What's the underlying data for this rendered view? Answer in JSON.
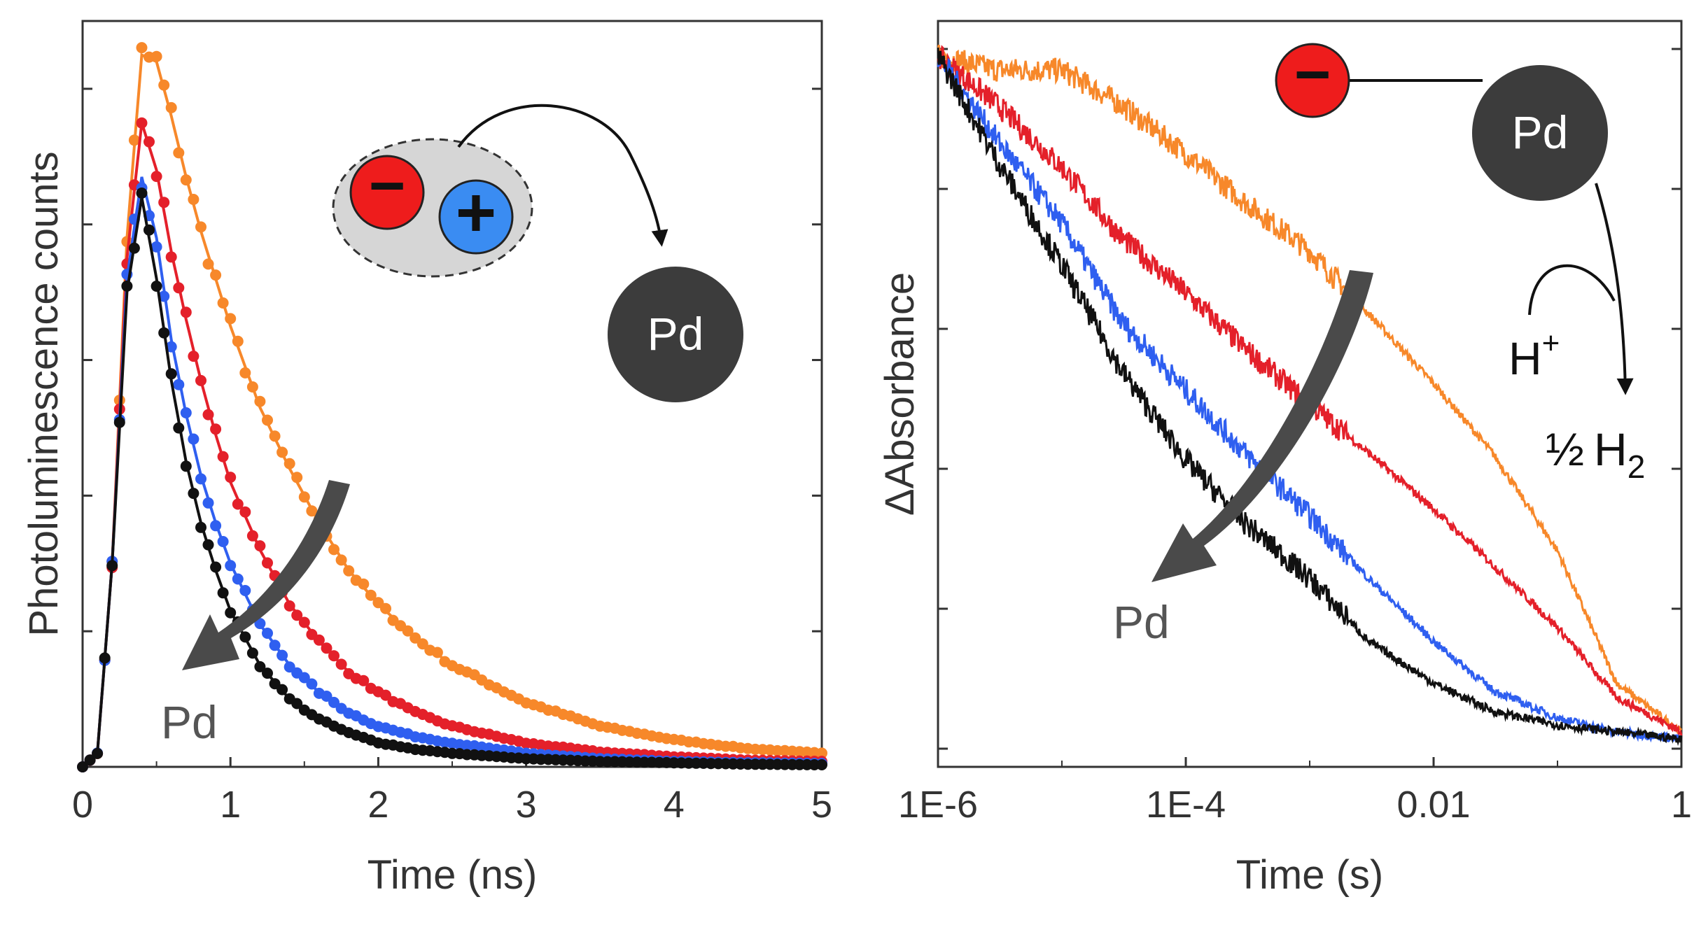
{
  "colors": {
    "orange": "#f7882a",
    "red": "#e4202a",
    "blue": "#2f5ff0",
    "black": "#111111",
    "arrow_gray": "#4a4a4a",
    "pd_sphere": "#3c3c3c",
    "electron": "#ee1c1c",
    "hole": "#3a8cf2",
    "exciton_cloud": "#d6d6d6"
  },
  "chart_data": [
    {
      "type": "scatter",
      "panel": "left",
      "xlabel": "Time (ns)",
      "ylabel": "Photoluminescence counts",
      "xlim": [
        0,
        5
      ],
      "ylim": [
        0,
        1.1
      ],
      "xticks": [
        "0",
        "1",
        "2",
        "3",
        "4",
        "5"
      ],
      "y_tick_labels_shown": false,
      "grid": false,
      "markers_with_fit_lines": true,
      "x": [
        0.0,
        0.1,
        0.2,
        0.3,
        0.4,
        0.5,
        0.6,
        0.7,
        0.8,
        0.9,
        1.0,
        1.2,
        1.4,
        1.6,
        1.8,
        2.0,
        2.25,
        2.5,
        3.0,
        3.5,
        4.0,
        4.5,
        5.0
      ],
      "series": [
        {
          "color": "orange",
          "values": [
            0.0,
            0.02,
            0.3,
            0.78,
            1.05,
            1.04,
            0.96,
            0.87,
            0.79,
            0.72,
            0.65,
            0.53,
            0.44,
            0.36,
            0.29,
            0.24,
            0.19,
            0.15,
            0.095,
            0.06,
            0.04,
            0.027,
            0.02
          ]
        },
        {
          "color": "red",
          "values": [
            0.0,
            0.02,
            0.3,
            0.75,
            0.95,
            0.88,
            0.76,
            0.66,
            0.57,
            0.49,
            0.42,
            0.32,
            0.24,
            0.185,
            0.14,
            0.11,
            0.08,
            0.06,
            0.035,
            0.022,
            0.015,
            0.01,
            0.008
          ]
        },
        {
          "color": "blue",
          "values": [
            0.0,
            0.02,
            0.3,
            0.72,
            0.87,
            0.78,
            0.63,
            0.52,
            0.43,
            0.36,
            0.3,
            0.21,
            0.15,
            0.11,
            0.08,
            0.06,
            0.045,
            0.035,
            0.02,
            0.012,
            0.008,
            0.006,
            0.005
          ]
        },
        {
          "color": "black",
          "values": [
            0.0,
            0.02,
            0.3,
            0.7,
            0.84,
            0.72,
            0.57,
            0.45,
            0.36,
            0.29,
            0.23,
            0.15,
            0.1,
            0.07,
            0.05,
            0.036,
            0.026,
            0.02,
            0.012,
            0.008,
            0.006,
            0.004,
            0.003
          ]
        }
      ],
      "annotations": {
        "arrow_label": "Pd",
        "sphere_label": "Pd",
        "electron_symbol": "−",
        "hole_symbol": "+"
      }
    },
    {
      "type": "line",
      "panel": "right",
      "xlabel": "Time (s)",
      "ylabel": "ΔAbsorbance",
      "x_scale": "log",
      "xlim": [
        1e-06,
        1
      ],
      "ylim": [
        0,
        1.0
      ],
      "xticks": [
        "1E-6",
        "1E-4",
        "0.01",
        "1"
      ],
      "y_tick_labels_shown": false,
      "grid": false,
      "x": [
        1e-06,
        3e-06,
        1e-05,
        3e-05,
        0.0001,
        0.0003,
        0.001,
        0.003,
        0.01,
        0.03,
        0.1,
        0.3,
        1
      ],
      "series": [
        {
          "color": "orange",
          "values": [
            1.0,
            0.98,
            0.98,
            0.93,
            0.86,
            0.79,
            0.72,
            0.63,
            0.53,
            0.43,
            0.29,
            0.1,
            0.03
          ]
        },
        {
          "color": "red",
          "values": [
            1.0,
            0.93,
            0.84,
            0.74,
            0.66,
            0.58,
            0.5,
            0.43,
            0.35,
            0.27,
            0.18,
            0.08,
            0.03
          ]
        },
        {
          "color": "blue",
          "values": [
            1.0,
            0.88,
            0.76,
            0.62,
            0.52,
            0.43,
            0.34,
            0.25,
            0.16,
            0.09,
            0.05,
            0.03,
            0.02
          ]
        },
        {
          "color": "black",
          "values": [
            1.0,
            0.85,
            0.7,
            0.55,
            0.42,
            0.33,
            0.25,
            0.16,
            0.1,
            0.06,
            0.04,
            0.03,
            0.02
          ]
        }
      ],
      "annotations": {
        "arrow_label": "Pd",
        "sphere_label": "Pd",
        "electron_symbol": "−",
        "proton": "H",
        "proton_charge": "+",
        "product_fraction": "½",
        "product": "H",
        "product_subscript": "2"
      }
    }
  ]
}
